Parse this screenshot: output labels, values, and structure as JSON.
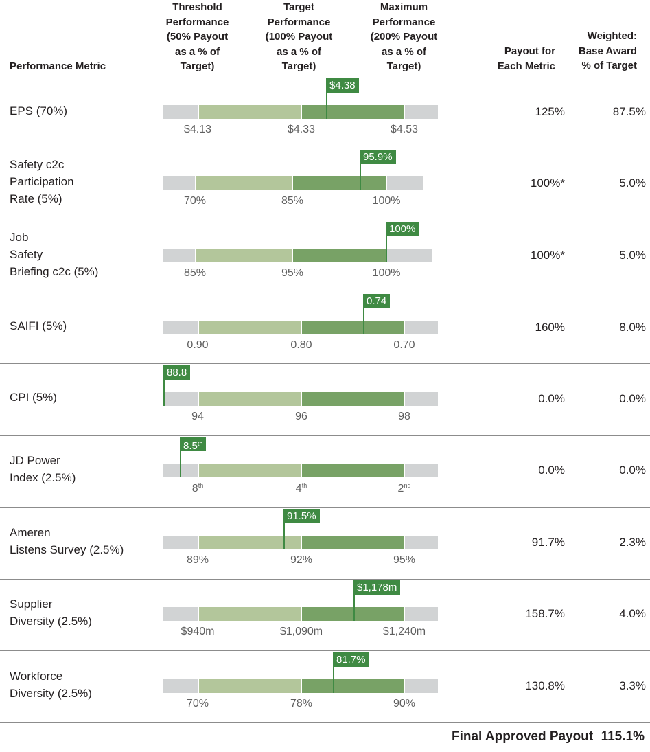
{
  "headers": {
    "metric": "Performance Metric",
    "threshold": [
      "Threshold",
      "Performance",
      "(50% Payout",
      "as a % of",
      "Target)"
    ],
    "target": [
      "Target",
      "Performance",
      "(100% Payout",
      "as a % of",
      "Target)"
    ],
    "maximum": [
      "Maximum",
      "Performance",
      "(200% Payout",
      "as a % of",
      "Target)"
    ],
    "payout": [
      "Payout for",
      "Each Metric"
    ],
    "weighted": [
      "Weighted:",
      "Base Award",
      "% of Target"
    ]
  },
  "colors": {
    "grey": "#d1d3d4",
    "light_green": "#b3c69b",
    "dark_green": "#78a266",
    "flag_green": "#3f8a43"
  },
  "rows": [
    {
      "label": [
        "EPS (70%)"
      ],
      "threshold": "$4.13",
      "target": "$4.33",
      "maximum": "$4.53",
      "actual": "$4.38",
      "actual_position": 0.625,
      "payout": "125%",
      "weighted": "87.5%"
    },
    {
      "label": [
        "Safety c2c",
        "Participation",
        "Rate (5%)"
      ],
      "threshold": "70%",
      "target": "85%",
      "maximum": "100%",
      "actual": "95.9%",
      "actual_position": 0.7,
      "payout": "100%*",
      "weighted": "5.0%"
    },
    {
      "label": [
        "Job",
        "Safety",
        "Briefing c2c (5%)"
      ],
      "threshold": "85%",
      "target": "95%",
      "maximum": "100%",
      "actual": "100%",
      "actual_position": 1.0,
      "payout": "100%*",
      "weighted": "5.0%"
    },
    {
      "label": [
        "SAIFI (5%)"
      ],
      "threshold": "0.90",
      "target": "0.80",
      "maximum": "0.70",
      "actual": "0.74",
      "actual_position": 0.6,
      "payout": "160%",
      "weighted": "8.0%"
    },
    {
      "label": [
        "CPI (5%)"
      ],
      "threshold": "94",
      "target": "96",
      "maximum": "98",
      "actual": "88.8",
      "actual_position": -0.33,
      "payout": "0.0%",
      "weighted": "0.0%"
    },
    {
      "label": [
        "JD Power",
        "Index (2.5%)"
      ],
      "threshold": "8",
      "threshold_sup": "th",
      "target": "4",
      "target_sup": "th",
      "maximum": "2",
      "maximum_sup": "nd",
      "actual": "8.5",
      "actual_sup": "th",
      "actual_position": -0.17,
      "payout": "0.0%",
      "weighted": "0.0%"
    },
    {
      "label": [
        "Ameren",
        "Listens Survey (2.5%)"
      ],
      "threshold": "89%",
      "target": "92%",
      "maximum": "95%",
      "actual": "91.5%",
      "actual_position": 0.83,
      "payout": "91.7%",
      "weighted": "2.3%"
    },
    {
      "label": [
        "Supplier",
        "Diversity (2.5%)"
      ],
      "threshold": "$940m",
      "target": "$1,090m",
      "maximum": "$1,240m",
      "actual": "$1,178m",
      "actual_position": 1.39,
      "payout": "158.7%",
      "weighted": "4.0%"
    },
    {
      "label": [
        "Workforce",
        "Diversity (2.5%)"
      ],
      "threshold": "70%",
      "target": "78%",
      "maximum": "90%",
      "actual": "81.7%",
      "actual_position": 1.31,
      "payout": "130.8%",
      "weighted": "3.3%"
    }
  ],
  "final": {
    "label": "Final Approved Payout",
    "value": "115.1%"
  }
}
